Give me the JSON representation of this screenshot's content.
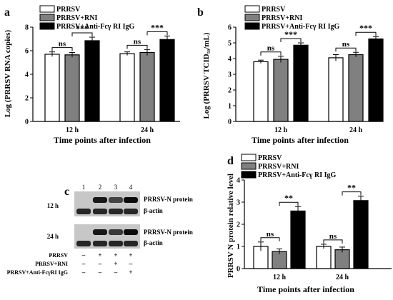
{
  "colors": {
    "PRRSV": "#ffffff",
    "PRRSV+RNI": "#808080",
    "PRRSV+Anti-FcγRI IgG": "#000000"
  },
  "chart_data": [
    {
      "panel": "a",
      "type": "bar",
      "categories": [
        "12 h",
        "24 h"
      ],
      "xlabel": "Time points after infection",
      "ylabel": "Log (PRRSV RNA copies)",
      "ylim": [
        0,
        8
      ],
      "yticks": [
        0,
        2,
        4,
        6,
        8
      ],
      "legend_position": "top-left",
      "series": [
        {
          "name": "PRRSV",
          "values": [
            5.7,
            5.75
          ],
          "errors": [
            0.2,
            0.15
          ]
        },
        {
          "name": "PRRSV+RNI",
          "values": [
            5.65,
            5.85
          ],
          "errors": [
            0.2,
            0.25
          ]
        },
        {
          "name": "PRRSV+Anti-Fcγ RI IgG",
          "values": [
            6.85,
            6.95
          ],
          "errors": [
            0.3,
            0.3
          ]
        }
      ],
      "annotations": [
        {
          "category": "12 h",
          "pair": [
            0,
            1
          ],
          "text": "ns"
        },
        {
          "category": "12 h",
          "pair": [
            1,
            2
          ],
          "text": "***"
        },
        {
          "category": "24 h",
          "pair": [
            0,
            1
          ],
          "text": "ns"
        },
        {
          "category": "24 h",
          "pair": [
            1,
            2
          ],
          "text": "***"
        }
      ]
    },
    {
      "panel": "b",
      "type": "bar",
      "categories": [
        "12 h",
        "24 h"
      ],
      "xlabel": "Time points after infection",
      "ylabel": "Log (PRRSV TCID₅₀/mL)",
      "ylim": [
        0,
        6
      ],
      "yticks": [
        0,
        1,
        2,
        3,
        4,
        5,
        6
      ],
      "legend_position": "top-left",
      "series": [
        {
          "name": "PRRSV",
          "values": [
            3.8,
            4.05
          ],
          "errors": [
            0.1,
            0.2
          ]
        },
        {
          "name": "PRRSV+RNI",
          "values": [
            3.95,
            4.25
          ],
          "errors": [
            0.2,
            0.15
          ]
        },
        {
          "name": "PRRSV+Anti-Fcγ RI IgG",
          "values": [
            4.85,
            5.25
          ],
          "errors": [
            0.15,
            0.15
          ]
        }
      ],
      "annotations": [
        {
          "category": "12 h",
          "pair": [
            0,
            1
          ],
          "text": "ns"
        },
        {
          "category": "12 h",
          "pair": [
            1,
            2
          ],
          "text": "***"
        },
        {
          "category": "24 h",
          "pair": [
            0,
            1
          ],
          "text": "ns"
        },
        {
          "category": "24 h",
          "pair": [
            1,
            2
          ],
          "text": "***"
        }
      ]
    },
    {
      "panel": "d",
      "type": "bar",
      "categories": [
        "12 h",
        "24 h"
      ],
      "xlabel": "Time points after infection",
      "ylabel": "PRRSV N protein relative level",
      "ylim": [
        0,
        4
      ],
      "yticks": [
        0,
        1,
        2,
        3,
        4
      ],
      "legend_position": "top-left",
      "series": [
        {
          "name": "PRRSV",
          "values": [
            1.0,
            1.0
          ],
          "errors": [
            0.2,
            0.1
          ]
        },
        {
          "name": "PRRSV+RNI",
          "values": [
            0.77,
            0.85
          ],
          "errors": [
            0.12,
            0.12
          ]
        },
        {
          "name": "PRRSV+Anti-Fcγ RI IgG",
          "values": [
            2.6,
            3.07
          ],
          "errors": [
            0.2,
            0.2
          ]
        }
      ],
      "annotations": [
        {
          "category": "12 h",
          "pair": [
            0,
            1
          ],
          "text": "ns"
        },
        {
          "category": "12 h",
          "pair": [
            1,
            2
          ],
          "text": "**"
        },
        {
          "category": "24 h",
          "pair": [
            0,
            1
          ],
          "text": "ns"
        },
        {
          "category": "24 h",
          "pair": [
            1,
            2
          ],
          "text": "**"
        }
      ]
    }
  ],
  "panel_c": {
    "letter": "c",
    "lanes": [
      "1",
      "2",
      "3",
      "4"
    ],
    "rows": [
      {
        "time": "12 h",
        "labels": [
          "PRRSV-N protein",
          "β-actin"
        ],
        "n_intensity": [
          0,
          0.9,
          0.55,
          1.0
        ],
        "actin_intensity": [
          0.95,
          0.95,
          0.95,
          0.95
        ]
      },
      {
        "time": "24 h",
        "labels": [
          "PRRSV-N protein",
          "β-actin"
        ],
        "n_intensity": [
          0,
          0.9,
          0.65,
          1.0
        ],
        "actin_intensity": [
          0.95,
          0.95,
          0.95,
          0.95
        ]
      }
    ],
    "treatments": [
      {
        "label": "PRRSV",
        "signs": [
          "–",
          "+",
          "+",
          "+"
        ]
      },
      {
        "label": "PRRSV+RNI",
        "signs": [
          "–",
          "–",
          "+",
          "–"
        ]
      },
      {
        "label": "PRRSV+Anti-FcγRI IgG",
        "signs": [
          "–",
          "–",
          "–",
          "+"
        ]
      }
    ]
  }
}
